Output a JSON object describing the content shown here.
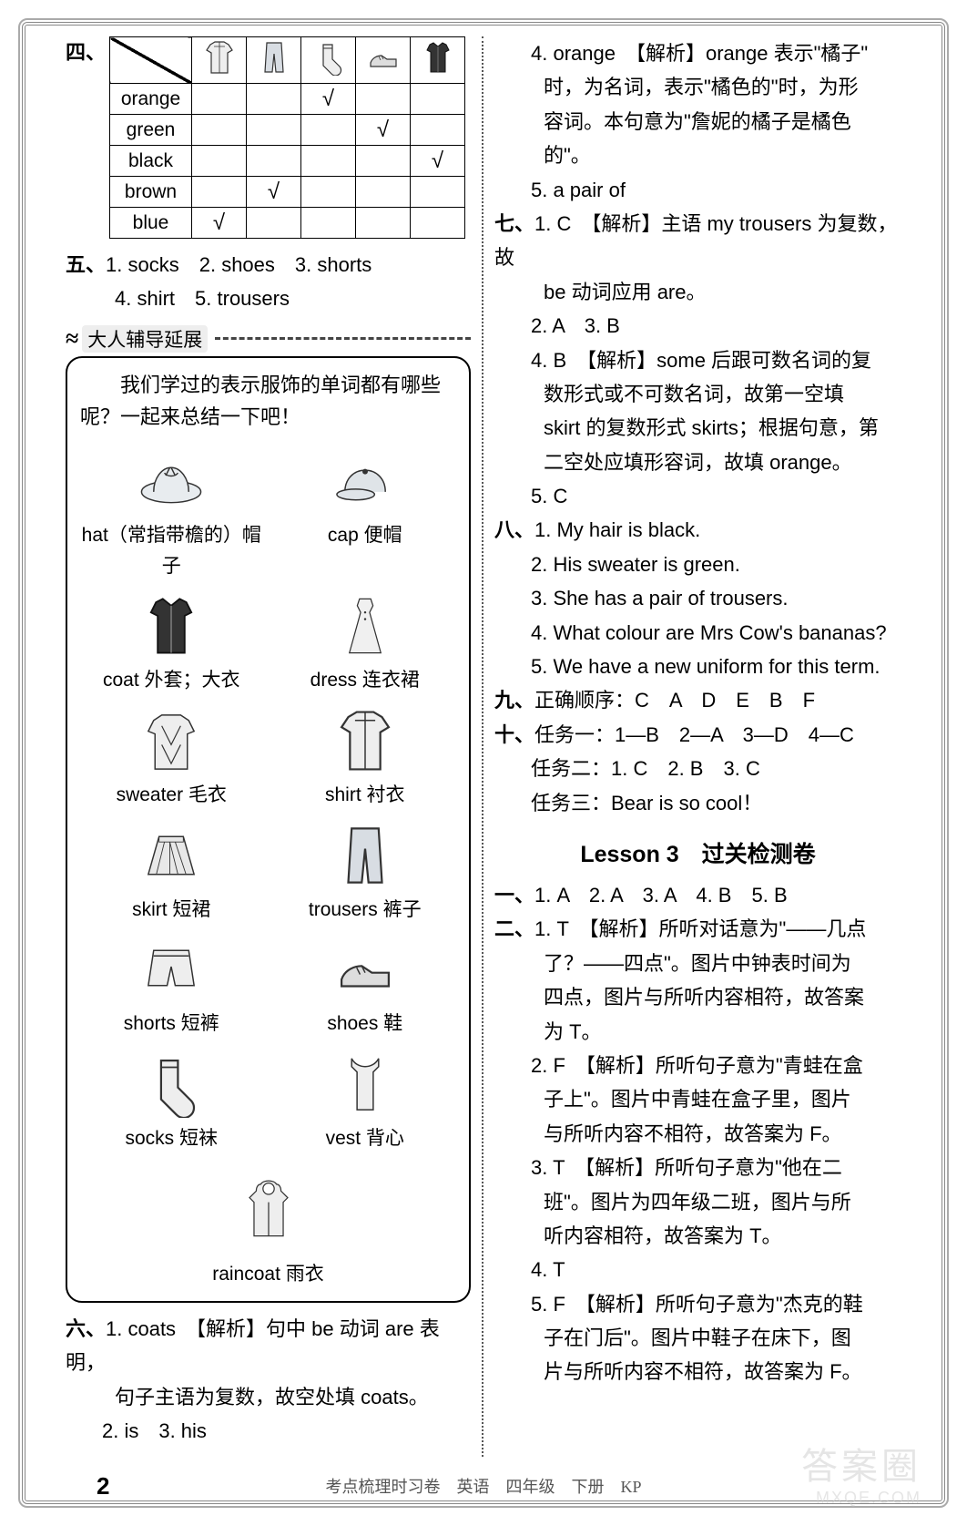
{
  "table": {
    "columns": [
      "shirt-icon",
      "trousers-icon",
      "socks-icon",
      "shoes-icon",
      "coat-icon"
    ],
    "rows": [
      {
        "label": "orange",
        "checks": [
          false,
          false,
          true,
          false,
          false
        ]
      },
      {
        "label": "green",
        "checks": [
          false,
          false,
          false,
          true,
          false
        ]
      },
      {
        "label": "black",
        "checks": [
          false,
          false,
          false,
          false,
          true
        ]
      },
      {
        "label": "brown",
        "checks": [
          false,
          true,
          false,
          false,
          false
        ]
      },
      {
        "label": "blue",
        "checks": [
          true,
          false,
          false,
          false,
          false
        ]
      }
    ],
    "check_mark": "√"
  },
  "sec4_label": "四、",
  "sec5": {
    "label": "五、",
    "items": [
      "1. socks",
      "2. shoes",
      "3. shorts",
      "4. shirt",
      "5. trousers"
    ]
  },
  "ext": {
    "header_icon": "≈",
    "header_text": "大人辅导延展",
    "intro": "我们学过的表示服饰的单词都有哪些呢？一起来总结一下吧！",
    "vocab": [
      {
        "icon": "hat",
        "label": "hat（常指带檐的）帽子"
      },
      {
        "icon": "cap",
        "label": "cap 便帽"
      },
      {
        "icon": "coat",
        "label": "coat 外套；大衣"
      },
      {
        "icon": "dress",
        "label": "dress 连衣裙"
      },
      {
        "icon": "sweater",
        "label": "sweater 毛衣"
      },
      {
        "icon": "shirt",
        "label": "shirt 衬衣"
      },
      {
        "icon": "skirt",
        "label": "skirt 短裙"
      },
      {
        "icon": "trousers",
        "label": "trousers 裤子"
      },
      {
        "icon": "shorts",
        "label": "shorts 短裤"
      },
      {
        "icon": "shoes",
        "label": "shoes 鞋"
      },
      {
        "icon": "socks",
        "label": "socks 短袜"
      },
      {
        "icon": "vest",
        "label": "vest 背心"
      }
    ],
    "vocab_last": {
      "icon": "raincoat",
      "label": "raincoat 雨衣"
    }
  },
  "sec6": {
    "label": "六、",
    "l1": "1. coats　【解析】句中 be 动词 are 表明，",
    "l2": "句子主语为复数，故空处填 coats。",
    "l3": "2. is　3. his"
  },
  "right": {
    "r4a": "4. orange　【解析】orange 表示\"橘子\"",
    "r4b": "时，为名词，表示\"橘色的\"时，为形",
    "r4c": "容词。本句意为\"詹妮的橘子是橘色",
    "r4d": "的\"。",
    "r5": "5. a pair of",
    "s7": {
      "label": "七、",
      "l1": "1. C　【解析】主语 my trousers 为复数，故",
      "l1b": "be 动词应用 are。",
      "l2": "2. A　3. B",
      "l3": "4. B　【解析】some 后跟可数名词的复",
      "l3b": "数形式或不可数名词，故第一空填",
      "l3c": "skirt 的复数形式 skirts；根据句意，第",
      "l3d": "二空处应填形容词，故填 orange。",
      "l4": "5. C"
    },
    "s8": {
      "label": "八、",
      "l1": "1. My hair is black.",
      "l2": "2. His sweater is green.",
      "l3": "3. She has a pair of trousers.",
      "l4": "4. What colour are Mrs Cow's bananas?",
      "l5": "5. We have a new uniform for this term."
    },
    "s9": {
      "label": "九、",
      "text": "正确顺序：C　A　D　E　B　F"
    },
    "s10": {
      "label": "十、",
      "t1": "任务一：1—B　2—A　3—D　4—C",
      "t2": "任务二：1. C　2. B　3. C",
      "t3": "任务三：Bear is so cool！"
    },
    "lesson_title": "Lesson 3　过关检测卷",
    "L1": {
      "label": "一、",
      "text": "1. A　2. A　3. A　4. B　5. B"
    },
    "L2": {
      "label": "二、",
      "i1a": "1. T　【解析】所听对话意为\"——几点",
      "i1b": "了？——四点\"。图片中钟表时间为",
      "i1c": "四点，图片与所听内容相符，故答案",
      "i1d": "为 T。",
      "i2a": "2. F　【解析】所听句子意为\"青蛙在盒",
      "i2b": "子上\"。图片中青蛙在盒子里，图片",
      "i2c": "与所听内容不相符，故答案为 F。",
      "i3a": "3. T　【解析】所听句子意为\"他在二",
      "i3b": "班\"。图片为四年级二班，图片与所",
      "i3c": "听内容相符，故答案为 T。",
      "i4": "4. T",
      "i5a": "5. F　【解析】所听句子意为\"杰克的鞋",
      "i5b": "子在门后\"。图片中鞋子在床下，图",
      "i5c": "片与所听内容不相符，故答案为 F。"
    }
  },
  "footer": {
    "page": "2",
    "text": "考点梳理时习卷　英语　四年级　下册　KP"
  },
  "watermark": "答案圈",
  "watermark2": "MXQE.COM"
}
